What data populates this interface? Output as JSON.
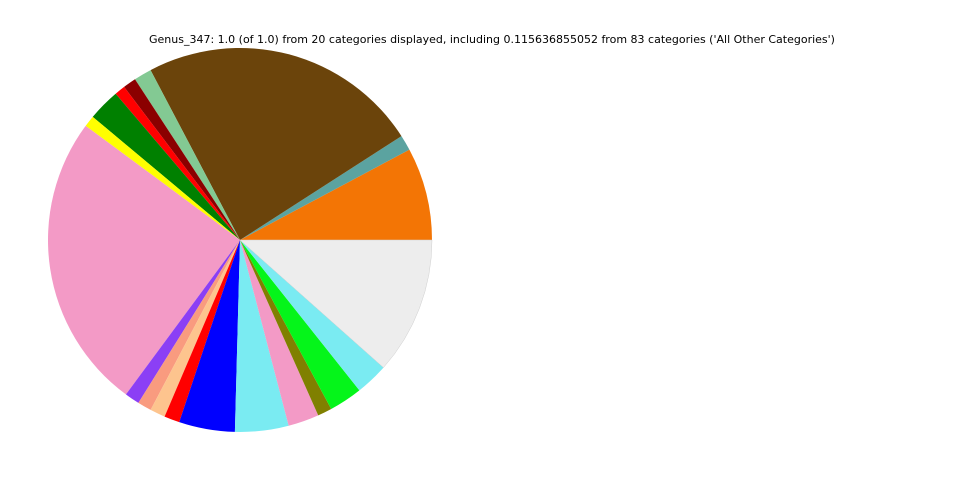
{
  "chart_data": {
    "type": "pie",
    "title": "Genus_347: 1.0 (of 1.0) from 20 categories displayed, including 0.115636855052 from 83 categories ('All Other Categories')",
    "start_angle_deg": 0,
    "direction": "counterclockwise",
    "legend": "none",
    "values": [
      0.078,
      0.013,
      0.236,
      0.015,
      0.011,
      0.009,
      0.027,
      0.0095,
      0.25,
      0.0125,
      0.0117,
      0.0128,
      0.013,
      0.047,
      0.045,
      0.026,
      0.012,
      0.028,
      0.0275,
      0.115636855052
    ],
    "colors": [
      "#f37505",
      "#5ba3a0",
      "#6b440b",
      "#83c993",
      "#8b0000",
      "#ff0000",
      "#008000",
      "#ffff00",
      "#f39ac6",
      "#8b3ff5",
      "#f99b7f",
      "#fdc48e",
      "#ff0000",
      "#0000ff",
      "#7aebf2",
      "#f39ac6",
      "#808000",
      "#05f51a",
      "#7aebf2",
      "#ededed"
    ]
  }
}
